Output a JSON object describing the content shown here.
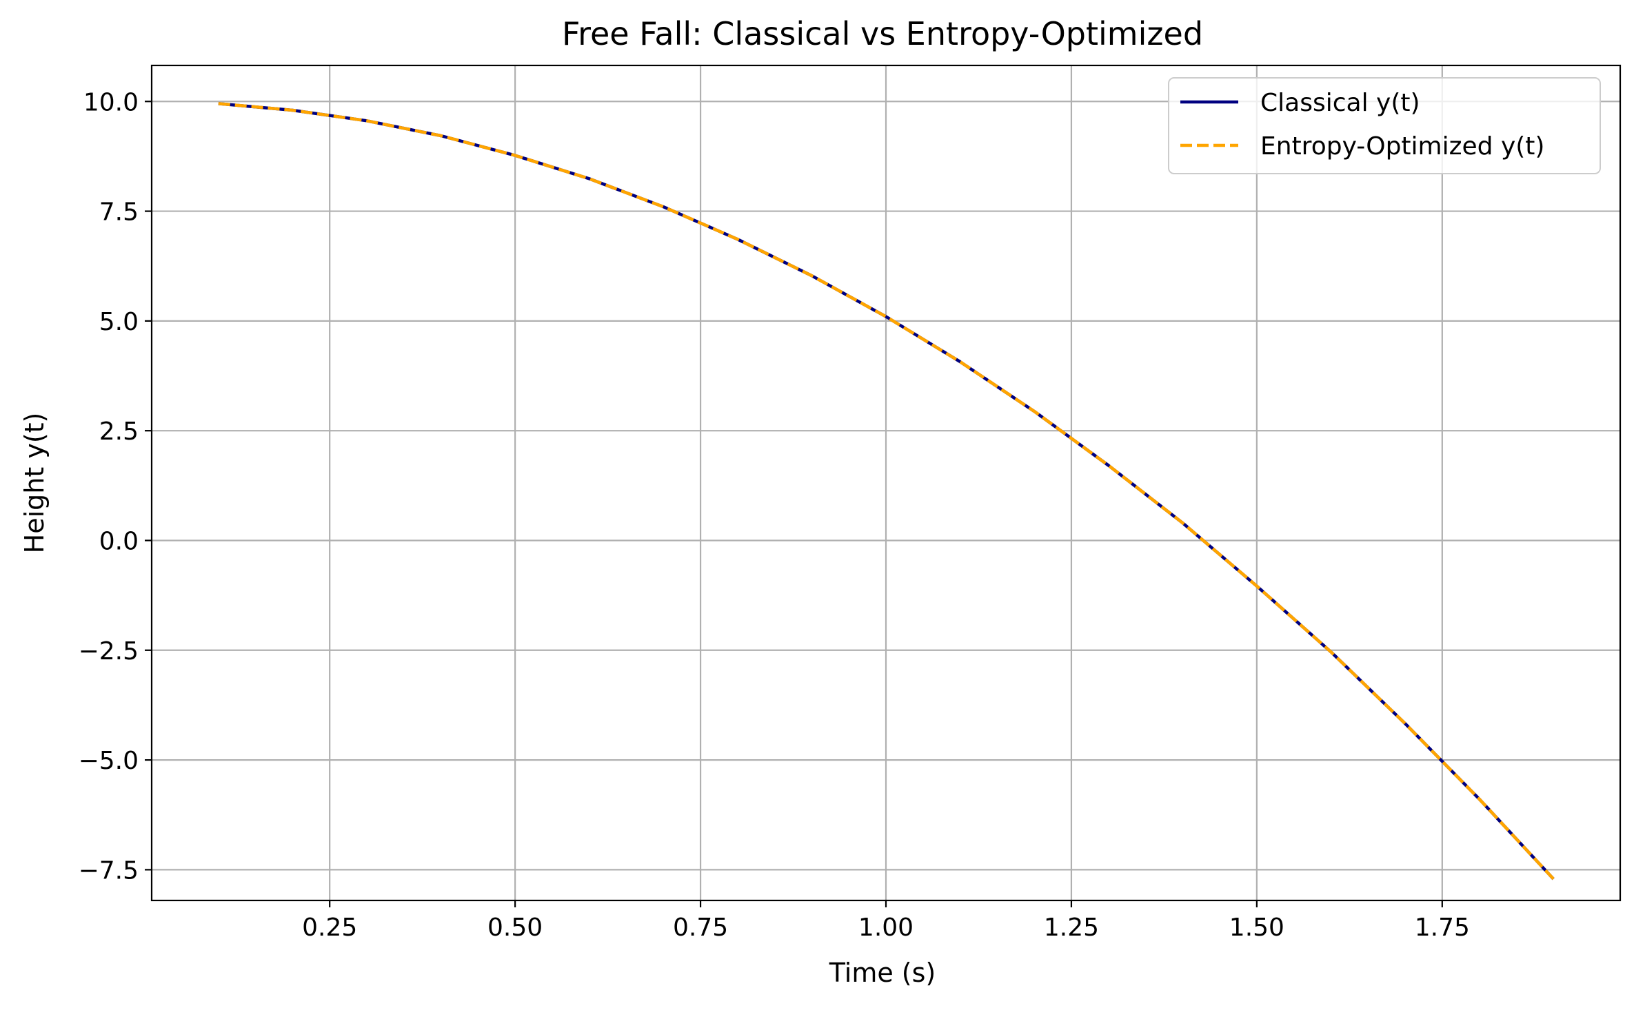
{
  "chart_data": {
    "type": "line",
    "title": "Free Fall: Classical vs Entropy-Optimized",
    "xlabel": "Time (s)",
    "ylabel": "Height y(t)",
    "xlim": [
      0.01,
      1.99
    ],
    "ylim": [
      -8.2,
      10.82
    ],
    "grid": true,
    "legend_position": "top-right",
    "x_ticks": [
      0.25,
      0.5,
      0.75,
      1.0,
      1.25,
      1.5,
      1.75
    ],
    "x_tick_labels": [
      "0.25",
      "0.50",
      "0.75",
      "1.00",
      "1.25",
      "1.50",
      "1.75"
    ],
    "y_ticks": [
      10.0,
      7.5,
      5.0,
      2.5,
      0.0,
      -2.5,
      -5.0,
      -7.5
    ],
    "y_tick_labels": [
      "10.0",
      "7.5",
      "5.0",
      "2.5",
      "0.0",
      "−2.5",
      "−5.0",
      "−7.5"
    ],
    "x": [
      0.1,
      0.2,
      0.3,
      0.4,
      0.5,
      0.6,
      0.7,
      0.8,
      0.9,
      1.0,
      1.1,
      1.2,
      1.3,
      1.4,
      1.5,
      1.6,
      1.7,
      1.8,
      1.9
    ],
    "series": [
      {
        "name": "Classical y(t)",
        "color": "#000080",
        "style": "solid",
        "values": [
          9.95,
          9.8,
          9.56,
          9.22,
          8.77,
          8.24,
          7.6,
          6.86,
          6.03,
          5.1,
          4.07,
          2.94,
          1.71,
          0.4,
          -1.04,
          -2.54,
          -4.17,
          -5.89,
          -7.71
        ]
      },
      {
        "name": "Entropy-Optimized y(t)",
        "color": "#FFA500",
        "style": "dashed",
        "values": [
          9.95,
          9.8,
          9.56,
          9.22,
          8.77,
          8.24,
          7.6,
          6.86,
          6.03,
          5.1,
          4.07,
          2.94,
          1.71,
          0.4,
          -1.04,
          -2.54,
          -4.17,
          -5.89,
          -7.71
        ]
      }
    ]
  }
}
